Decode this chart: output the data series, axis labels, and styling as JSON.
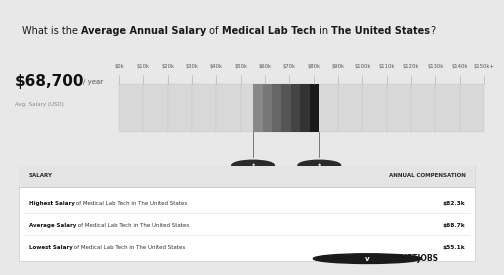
{
  "title_parts": [
    [
      "What is the ",
      false
    ],
    [
      "Average Annual Salary",
      true
    ],
    [
      " of ",
      false
    ],
    [
      "Medical Lab Tech",
      true
    ],
    [
      " in ",
      false
    ],
    [
      "The United States",
      true
    ],
    [
      "?",
      false
    ]
  ],
  "avg_salary_display": "$68,700",
  "avg_salary_sub": "/ year",
  "avg_salary_label": "Avg. Salary (USD)",
  "tick_labels": [
    "$0k",
    "$10k",
    "$20k",
    "$30k",
    "$40k",
    "$50k",
    "$60k",
    "$70k",
    "$80k",
    "$90k",
    "$100k",
    "$110k",
    "$120k",
    "$130k",
    "$140k",
    "$150k+"
  ],
  "tick_values": [
    0,
    10,
    20,
    30,
    40,
    50,
    60,
    70,
    80,
    90,
    100,
    110,
    120,
    130,
    140,
    150
  ],
  "bar_low": 55.1,
  "bar_high": 82.3,
  "bar_avg": 68.7,
  "gradient_colors": [
    "#888888",
    "#777777",
    "#666666",
    "#555555",
    "#444444",
    "#333333",
    "#1a1a1a"
  ],
  "table_rows": [
    {
      "bold": "Highest Salary",
      "rest": " of Medical Lab Tech in The United States",
      "value": "$82.3k"
    },
    {
      "bold": "Average Salary",
      "rest": " of Medical Lab Tech in The United States",
      "value": "$68.7k"
    },
    {
      "bold": "Lowest Salary",
      "rest": " of Medical Lab Tech in The United States",
      "value": "$55.1k"
    }
  ],
  "table_header_left": "SALARY",
  "table_header_right": "ANNUAL COMPENSATION",
  "velvetjobs_text": "VELVETJOBS",
  "title_bg": "#f0f0f0",
  "bar_bg_color": "#e0e0e0",
  "main_bg": "#e8e8e8",
  "table_bg": "#f5f5f5",
  "header_bg": "#e4e4e4",
  "white": "#ffffff"
}
